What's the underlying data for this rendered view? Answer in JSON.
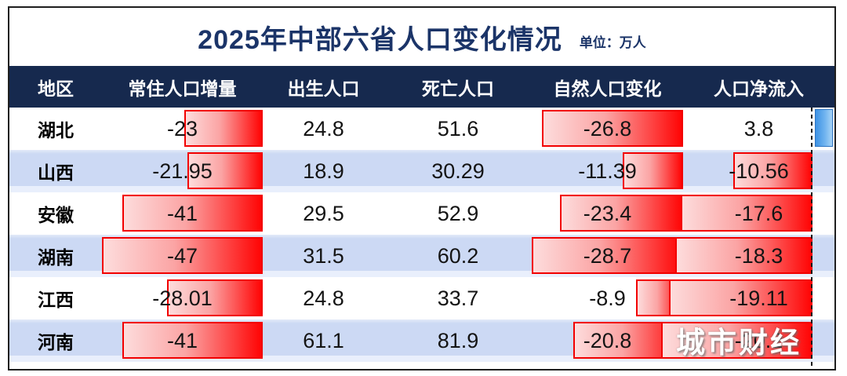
{
  "title": {
    "text": "2025年中部六省人口变化情况",
    "unit": "单位：万人"
  },
  "table": {
    "columns": [
      {
        "key": "region",
        "label": "地区",
        "bar": false
      },
      {
        "key": "resident_change",
        "label": "常住人口增量",
        "bar": true
      },
      {
        "key": "births",
        "label": "出生人口",
        "bar": false
      },
      {
        "key": "deaths",
        "label": "死亡人口",
        "bar": false
      },
      {
        "key": "natural_change",
        "label": "自然人口变化",
        "bar": true
      },
      {
        "key": "net_inflow",
        "label": "人口净流入",
        "bar": true
      }
    ],
    "rows": [
      {
        "region": "湖北",
        "resident_change": -23,
        "births": 24.8,
        "deaths": 51.6,
        "natural_change": -26.8,
        "net_inflow": 3.8
      },
      {
        "region": "山西",
        "resident_change": -21.95,
        "births": 18.9,
        "deaths": 30.29,
        "natural_change": -11.39,
        "net_inflow": -10.56
      },
      {
        "region": "安徽",
        "resident_change": -41,
        "births": 29.5,
        "deaths": 52.9,
        "natural_change": -23.4,
        "net_inflow": -17.6
      },
      {
        "region": "湖南",
        "resident_change": -47,
        "births": 31.5,
        "deaths": 60.2,
        "natural_change": -28.7,
        "net_inflow": -18.3
      },
      {
        "region": "江西",
        "resident_change": -28.01,
        "births": 24.8,
        "deaths": 33.7,
        "natural_change": -8.9,
        "net_inflow": -19.11
      },
      {
        "region": "河南",
        "resident_change": -41,
        "births": 61.1,
        "deaths": 81.9,
        "natural_change": -20.8,
        "net_inflow": -20.2
      }
    ]
  },
  "watermark": {
    "text": "城市财经"
  },
  "colors": {
    "header_bg": "#16294e",
    "title_text": "#1b3468",
    "row_alt_bg": "#ccd9f4",
    "bar_gradient_start": "#fddcdc",
    "bar_gradient_end": "#ff0505",
    "bar_border": "#f20000",
    "scroll_thumb_blue": "#6fb3ef"
  }
}
